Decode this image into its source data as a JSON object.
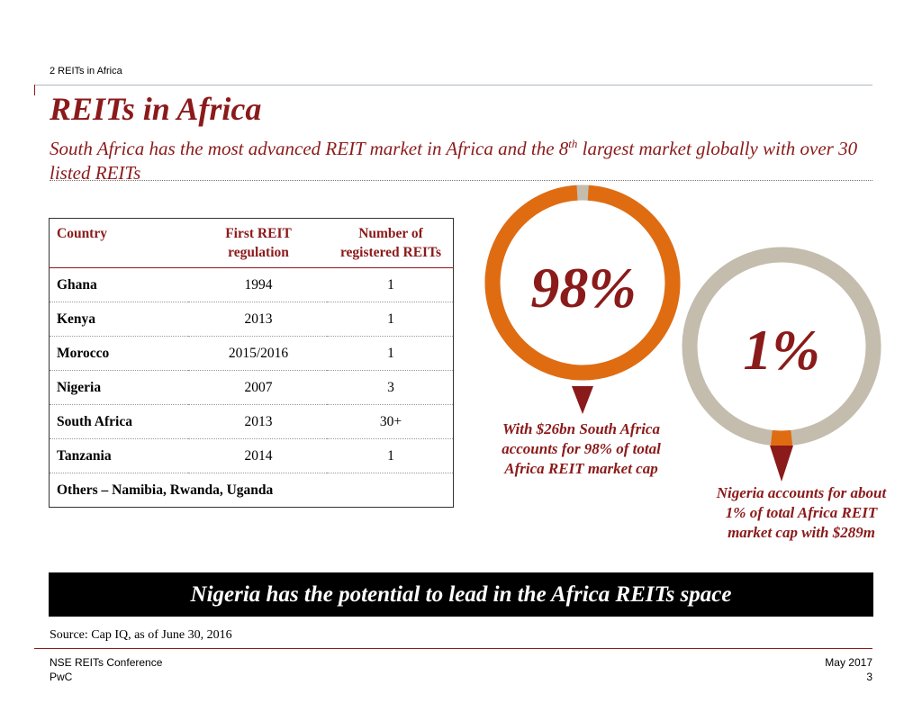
{
  "header": {
    "section_label": "2 REITs in Africa",
    "title": "REITs in Africa",
    "subtitle_part1": "South Africa has the most advanced REIT market in Africa and the 8",
    "subtitle_sup": "th",
    "subtitle_part2": " largest market globally with over 30 listed REITs"
  },
  "table": {
    "headers": [
      "Country",
      "First REIT regulation",
      "Number of registered REITs"
    ],
    "rows": [
      {
        "country": "Ghana",
        "year": "1994",
        "count": "1"
      },
      {
        "country": "Kenya",
        "year": "2013",
        "count": "1"
      },
      {
        "country": "Morocco",
        "year": "2015/2016",
        "count": "1"
      },
      {
        "country": "Nigeria",
        "year": "2007",
        "count": "3"
      },
      {
        "country": "South Africa",
        "year": "2013",
        "count": "30+"
      },
      {
        "country": "Tanzania",
        "year": "2014",
        "count": "1"
      }
    ],
    "others": "Others – Namibia, Rwanda, Uganda"
  },
  "donuts": {
    "south_africa": {
      "label": "98%",
      "share": 0.98,
      "caption": "With $26bn South Africa accounts for 98% of total Africa REIT market cap"
    },
    "nigeria": {
      "label": "1%",
      "share": 0.01,
      "caption": "Nigeria accounts for about 1% of total Africa REIT market cap with $289m"
    },
    "colors": {
      "fill": "#e06c12",
      "rest": "#c4bcac",
      "pointer": "#8b1a1a",
      "text": "#8b1a1a"
    }
  },
  "banner": "Nigeria has the potential to lead in the Africa REITs space",
  "source": "Source: Cap IQ, as of June 30, 2016",
  "footer": {
    "left_line1": "NSE REITs Conference",
    "left_line2": "PwC",
    "date": "May 2017",
    "page": "3"
  }
}
